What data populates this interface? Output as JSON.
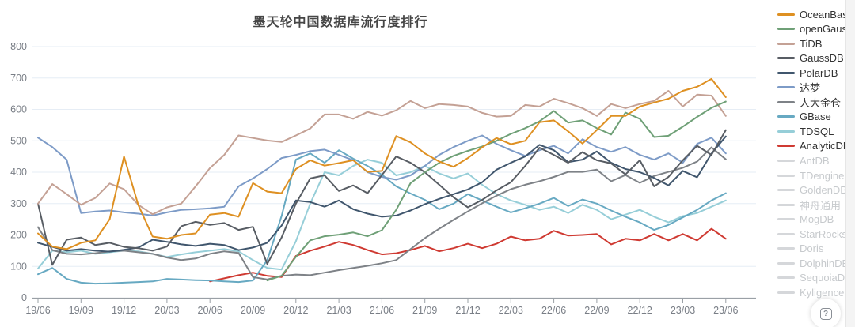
{
  "title": "墨天轮中国数据库流行度排行",
  "help_icon": "?",
  "colors": {
    "background": "#ffffff",
    "grid_line": "#e6edf5",
    "axis_line": "#9aa0a6",
    "axis_label": "#797e86",
    "title_text": "#464646",
    "legend_text": "#333333",
    "legend_disabled": "#c7cacd",
    "disabled_line": "#d5d7da"
  },
  "chart_data": {
    "type": "line",
    "title": "墨天轮中国数据库流行度排行",
    "xlabel": "",
    "ylabel": "",
    "ylim": [
      0,
      800
    ],
    "y_ticks": [
      0,
      100,
      200,
      300,
      400,
      500,
      600,
      700,
      800
    ],
    "x_tick_step": 3,
    "grid": true,
    "legend_position": "right",
    "x": [
      "19/06",
      "19/07",
      "19/08",
      "19/09",
      "19/10",
      "19/11",
      "19/12",
      "20/01",
      "20/02",
      "20/03",
      "20/04",
      "20/05",
      "20/06",
      "20/07",
      "20/08",
      "20/09",
      "20/10",
      "20/11",
      "20/12",
      "21/01",
      "21/02",
      "21/03",
      "21/04",
      "21/05",
      "21/06",
      "21/07",
      "21/08",
      "21/09",
      "21/10",
      "21/11",
      "21/12",
      "22/01",
      "22/02",
      "22/03",
      "22/04",
      "22/05",
      "22/06",
      "22/07",
      "22/08",
      "22/09",
      "22/10",
      "22/11",
      "22/12",
      "23/01",
      "23/02",
      "23/03",
      "23/04",
      "23/05",
      "23/06"
    ],
    "series": [
      {
        "name": "OceanBase",
        "color": "#de9022",
        "enabled": true,
        "values": [
          205,
          163,
          155,
          175,
          183,
          250,
          450,
          295,
          195,
          188,
          200,
          205,
          265,
          270,
          258,
          365,
          338,
          333,
          410,
          438,
          421,
          429,
          438,
          401,
          404,
          515,
          495,
          460,
          434,
          417,
          445,
          479,
          509,
          489,
          500,
          559,
          565,
          530,
          491,
          534,
          579,
          579,
          609,
          622,
          634,
          659,
          672,
          697,
          639
        ]
      },
      {
        "name": "openGauss",
        "color": "#6fa077",
        "enabled": true,
        "values": [
          null,
          null,
          null,
          null,
          null,
          null,
          null,
          null,
          null,
          null,
          null,
          null,
          null,
          null,
          null,
          null,
          55,
          70,
          130,
          183,
          196,
          201,
          208,
          196,
          215,
          280,
          365,
          400,
          430,
          452,
          468,
          482,
          500,
          522,
          540,
          562,
          595,
          558,
          565,
          540,
          520,
          590,
          570,
          512,
          516,
          545,
          576,
          605,
          625
        ]
      },
      {
        "name": "TiDB",
        "color": "#c4a195",
        "enabled": true,
        "values": [
          300,
          362,
          330,
          296,
          318,
          364,
          346,
          296,
          266,
          288,
          300,
          355,
          413,
          455,
          517,
          509,
          501,
          496,
          517,
          539,
          584,
          584,
          570,
          592,
          580,
          597,
          627,
          604,
          617,
          614,
          609,
          589,
          577,
          579,
          614,
          609,
          634,
          620,
          604,
          579,
          617,
          604,
          617,
          627,
          659,
          609,
          647,
          644,
          579
        ]
      },
      {
        "name": "GaussDB",
        "color": "#585d64",
        "enabled": true,
        "values": [
          300,
          105,
          185,
          192,
          168,
          175,
          162,
          158,
          150,
          163,
          228,
          242,
          232,
          238,
          216,
          226,
          108,
          192,
          300,
          380,
          390,
          340,
          358,
          333,
          391,
          450,
          430,
          400,
          360,
          320,
          288,
          312,
          342,
          368,
          420,
          478,
          455,
          430,
          464,
          438,
          428,
          393,
          438,
          355,
          385,
          438,
          484,
          455,
          534
        ]
      },
      {
        "name": "PolarDB",
        "color": "#40566d",
        "enabled": true,
        "values": [
          175,
          162,
          150,
          155,
          150,
          147,
          153,
          160,
          185,
          178,
          170,
          165,
          172,
          168,
          152,
          160,
          175,
          230,
          310,
          305,
          290,
          310,
          282,
          268,
          258,
          262,
          278,
          298,
          315,
          330,
          345,
          368,
          408,
          430,
          450,
          487,
          470,
          432,
          440,
          466,
          430,
          410,
          400,
          382,
          358,
          404,
          384,
          459,
          514
        ]
      },
      {
        "name": "达梦",
        "color": "#7d9bc7",
        "enabled": true,
        "values": [
          510,
          480,
          440,
          270,
          275,
          278,
          272,
          268,
          262,
          272,
          280,
          282,
          285,
          290,
          355,
          380,
          410,
          445,
          455,
          467,
          472,
          455,
          438,
          400,
          385,
          376,
          390,
          420,
          455,
          480,
          500,
          517,
          490,
          470,
          452,
          470,
          484,
          460,
          505,
          480,
          465,
          480,
          455,
          440,
          460,
          430,
          490,
          510,
          460
        ]
      },
      {
        "name": "人大金仓",
        "color": "#7e8287",
        "enabled": true,
        "values": [
          225,
          152,
          140,
          138,
          142,
          148,
          150,
          145,
          140,
          128,
          120,
          125,
          140,
          148,
          143,
          66,
          58,
          70,
          74,
          72,
          80,
          88,
          95,
          102,
          110,
          120,
          155,
          190,
          220,
          248,
          275,
          301,
          325,
          346,
          360,
          371,
          385,
          401,
          401,
          408,
          371,
          391,
          366,
          388,
          401,
          414,
          434,
          479,
          441
        ]
      },
      {
        "name": "GBase",
        "color": "#67a9c2",
        "enabled": true,
        "values": [
          75,
          95,
          60,
          48,
          45,
          46,
          48,
          50,
          52,
          60,
          58,
          56,
          55,
          52,
          50,
          55,
          120,
          260,
          440,
          460,
          430,
          470,
          443,
          420,
          392,
          355,
          332,
          312,
          282,
          300,
          330,
          310,
          290,
          272,
          285,
          300,
          318,
          292,
          313,
          300,
          278,
          258,
          240,
          216,
          232,
          256,
          280,
          310,
          333
        ]
      },
      {
        "name": "TDSQL",
        "color": "#96ced8",
        "enabled": true,
        "values": [
          93,
          150,
          145,
          150,
          140,
          145,
          150,
          148,
          140,
          130,
          138,
          145,
          150,
          155,
          148,
          120,
          95,
          90,
          180,
          300,
          400,
          390,
          420,
          440,
          430,
          390,
          400,
          420,
          396,
          380,
          396,
          360,
          330,
          310,
          296,
          280,
          290,
          270,
          296,
          280,
          250,
          265,
          280,
          258,
          240,
          260,
          270,
          290,
          310
        ]
      },
      {
        "name": "AnalyticDB",
        "color": "#cf3a32",
        "enabled": true,
        "values": [
          null,
          null,
          null,
          null,
          null,
          null,
          null,
          null,
          null,
          null,
          null,
          null,
          52,
          62,
          72,
          80,
          70,
          66,
          133,
          150,
          163,
          178,
          168,
          152,
          138,
          142,
          152,
          165,
          148,
          158,
          172,
          158,
          172,
          195,
          183,
          188,
          213,
          198,
          200,
          203,
          170,
          188,
          183,
          203,
          183,
          203,
          183,
          220,
          188
        ]
      },
      {
        "name": "AntDB",
        "color": "#d5d7da",
        "enabled": false,
        "values": []
      },
      {
        "name": "TDengine",
        "color": "#d5d7da",
        "enabled": false,
        "values": []
      },
      {
        "name": "GoldenDB",
        "color": "#d5d7da",
        "enabled": false,
        "values": []
      },
      {
        "name": "神舟通用",
        "color": "#d5d7da",
        "enabled": false,
        "values": []
      },
      {
        "name": "MogDB",
        "color": "#d5d7da",
        "enabled": false,
        "values": []
      },
      {
        "name": "StarRocks",
        "color": "#d5d7da",
        "enabled": false,
        "values": []
      },
      {
        "name": "Doris",
        "color": "#d5d7da",
        "enabled": false,
        "values": []
      },
      {
        "name": "DolphinDB",
        "color": "#d5d7da",
        "enabled": false,
        "values": []
      },
      {
        "name": "SequoiaDB",
        "color": "#d5d7da",
        "enabled": false,
        "values": []
      },
      {
        "name": "Kyligence",
        "color": "#d5d7da",
        "enabled": false,
        "values": []
      }
    ]
  }
}
